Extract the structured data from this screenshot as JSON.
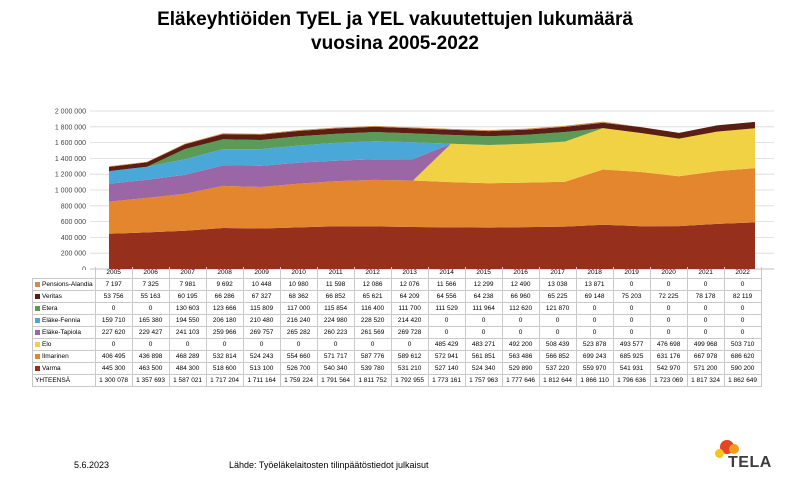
{
  "title_line1": "Eläkeyhtiöiden TyEL ja YEL vakuutettujen lukumäärä",
  "title_line2": "vuosina 2005-2022",
  "footer": {
    "date": "5.6.2023",
    "source": "Lähde: Työeläkelaitosten tilinpäätöstiedot julkaisut",
    "logo_text": "TELA"
  },
  "chart_data": {
    "type": "area",
    "stacked": true,
    "categories": [
      "2005",
      "2006",
      "2007",
      "2008",
      "2009",
      "2010",
      "2011",
      "2012",
      "2013",
      "2014",
      "2015",
      "2016",
      "2017",
      "2018",
      "2019",
      "2020",
      "2021",
      "2022"
    ],
    "ylim": [
      0,
      2000000
    ],
    "y_ticks": [
      "0",
      "200 000",
      "400 000",
      "600 000",
      "800 000",
      "1 000 000",
      "1 200 000",
      "1 400 000",
      "1 600 000",
      "1 800 000",
      "2 000 000"
    ],
    "series": [
      {
        "name": "Pensions-Alandia",
        "color": "#d38a4e",
        "values": [
          7197,
          7325,
          7981,
          9692,
          10448,
          10980,
          11598,
          12086,
          12076,
          11566,
          12299,
          12490,
          13038,
          13871,
          0,
          0,
          0,
          0
        ],
        "labels": [
          "7 197",
          "7 325",
          "7 981",
          "9 692",
          "10 448",
          "10 980",
          "11 598",
          "12 086",
          "12 076",
          "11 566",
          "12 299",
          "12 490",
          "13 038",
          "13 871",
          "0",
          "0",
          "0",
          "0"
        ]
      },
      {
        "name": "Veritas",
        "color": "#5b1e12",
        "values": [
          53756,
          55163,
          60195,
          66286,
          67327,
          68362,
          66852,
          65621,
          64209,
          64556,
          64238,
          66960,
          65225,
          69148,
          75203,
          72225,
          78178,
          82119
        ],
        "labels": [
          "53 756",
          "55 163",
          "60 195",
          "66 286",
          "67 327",
          "68 362",
          "66 852",
          "65 621",
          "64 209",
          "64 556",
          "64 238",
          "66 960",
          "65 225",
          "69 148",
          "75 203",
          "72 225",
          "78 178",
          "82 119"
        ]
      },
      {
        "name": "Etera",
        "color": "#5c9a57",
        "values": [
          0,
          0,
          130603,
          123666,
          115809,
          117000,
          115854,
          116400,
          111700,
          111529,
          111964,
          112620,
          121870,
          0,
          0,
          0,
          0,
          0
        ],
        "labels": [
          "0",
          "0",
          "130 603",
          "123 666",
          "115 809",
          "117 000",
          "115 854",
          "116 400",
          "111 700",
          "111 529",
          "111 964",
          "112 620",
          "121 870",
          "0",
          "0",
          "0",
          "0",
          "0"
        ]
      },
      {
        "name": "Eläke-Fennia",
        "color": "#4aa8d8",
        "values": [
          159710,
          165380,
          194550,
          206180,
          210480,
          216240,
          224980,
          228520,
          214420,
          0,
          0,
          0,
          0,
          0,
          0,
          0,
          0,
          0
        ],
        "labels": [
          "159 710",
          "165 380",
          "194 550",
          "206 180",
          "210 480",
          "216 240",
          "224 980",
          "228 520",
          "214 420",
          "0",
          "0",
          "0",
          "0",
          "0",
          "0",
          "0",
          "0",
          "0"
        ]
      },
      {
        "name": "Eläke-Tapiola",
        "color": "#9b66a6",
        "values": [
          227620,
          229427,
          241103,
          259966,
          269757,
          265282,
          260223,
          261569,
          269728,
          0,
          0,
          0,
          0,
          0,
          0,
          0,
          0,
          0
        ],
        "labels": [
          "227 620",
          "229 427",
          "241 103",
          "259 966",
          "269 757",
          "265 282",
          "260 223",
          "261 569",
          "269 728",
          "0",
          "0",
          "0",
          "0",
          "0",
          "0",
          "0",
          "0",
          "0"
        ]
      },
      {
        "name": "Elo",
        "color": "#f2d245",
        "values": [
          0,
          0,
          0,
          0,
          0,
          0,
          0,
          0,
          0,
          485429,
          483271,
          492200,
          508439,
          523878,
          493577,
          476698,
          499968,
          503710
        ],
        "labels": [
          "0",
          "0",
          "0",
          "0",
          "0",
          "0",
          "0",
          "0",
          "0",
          "485 429",
          "483 271",
          "492 200",
          "508 439",
          "523 878",
          "493 577",
          "476 698",
          "499 968",
          "503 710"
        ]
      },
      {
        "name": "Ilmarinen",
        "color": "#e3862e",
        "values": [
          406495,
          436898,
          468289,
          532814,
          524243,
          554660,
          571717,
          587776,
          589612,
          572941,
          561851,
          563486,
          566852,
          699243,
          685925,
          631176,
          667978,
          686620
        ],
        "labels": [
          "406 495",
          "436 898",
          "468 289",
          "532 814",
          "524 243",
          "554 660",
          "571 717",
          "587 776",
          "589 612",
          "572 941",
          "561 851",
          "563 486",
          "566 852",
          "699 243",
          "685 925",
          "631 176",
          "667 978",
          "686 620"
        ]
      },
      {
        "name": "Varma",
        "color": "#96301c",
        "values": [
          445300,
          463500,
          484300,
          518600,
          513100,
          526700,
          540340,
          539780,
          531210,
          527140,
          524340,
          529890,
          537220,
          559970,
          541931,
          542970,
          571200,
          590200
        ],
        "labels": [
          "445 300",
          "463 500",
          "484 300",
          "518 600",
          "513 100",
          "526 700",
          "540 340",
          "539 780",
          "531 210",
          "527 140",
          "524 340",
          "529 890",
          "537 220",
          "559 970",
          "541 931",
          "542 970",
          "571 200",
          "590 200"
        ]
      }
    ],
    "total": {
      "name": "YHTEENSÄ",
      "labels": [
        "1 300 078",
        "1 357 693",
        "1 587 021",
        "1 717 204",
        "1 711 164",
        "1 759 224",
        "1 791 564",
        "1 811 752",
        "1 792 955",
        "1 773 161",
        "1 757 963",
        "1 777 646",
        "1 812 644",
        "1 866 110",
        "1 796 636",
        "1 723 069",
        "1 817 324",
        "1 862 649"
      ]
    },
    "grid": true,
    "legend": "data table"
  }
}
